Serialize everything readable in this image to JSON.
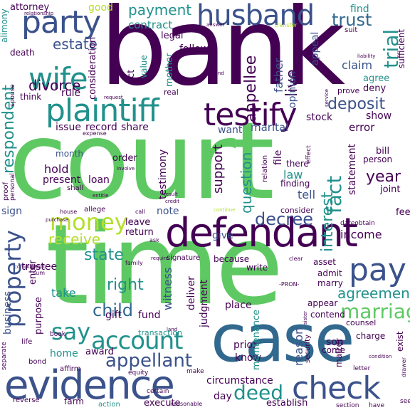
{
  "palette": {
    "dark_purple": "#440154",
    "indigo": "#3b528b",
    "teal": "#21918c",
    "green": "#5ec962",
    "yellow": "#fde725",
    "light_green": "#b5de2b"
  },
  "words": {
    "court": "court",
    "time": "time",
    "bank": "bank",
    "case": "case",
    "defendant": "defendant",
    "evidence": "evidence",
    "plaintiff": "plaintiff",
    "testify": "testify",
    "husband": "husband",
    "party": "party",
    "wife": "wife",
    "money": "money",
    "account": "account",
    "pay": "pay",
    "check": "check",
    "property": "property",
    "say": "say",
    "appellant": "appellant",
    "child": "child",
    "deed": "deed",
    "marriage": "marriage",
    "agreement": "agreement",
    "trust": "trust",
    "payment": "payment",
    "respondent": "respondent",
    "divorce": "divorce",
    "estate": "estate",
    "deposit": "deposit",
    "question": "question",
    "decree": "decree",
    "state": "state",
    "right": "right",
    "receive": "receive",
    "year": "year",
    "interest": "interest",
    "fact": "fact",
    "trial": "trial",
    "attorney": "attorney",
    "good": "good",
    "contract": "contract",
    "appellee": "appellee",
    "live": "live",
    "find": "find",
    "claim": "claim",
    "father": "father",
    "mother": "mother",
    "record": "record",
    "share": "share",
    "issue": "issue",
    "marital": "marital",
    "error": "error",
    "stock": "stock",
    "show": "show",
    "hold": "hold",
    "loan": "loan",
    "present": "present",
    "support": "support",
    "testimony": "testimony",
    "tell": "tell",
    "law": "law",
    "income": "income",
    "note": "note",
    "give": "give",
    "witness": "witness",
    "fund": "fund",
    "gift": "gift",
    "take": "take",
    "home": "home",
    "business": "business",
    "trustee": "trustee",
    "sign": "sign",
    "circumstance": "circumstance",
    "establish": "establish",
    "execute": "execute",
    "day": "day",
    "know": "know",
    "prior": "prior",
    "son": "son",
    "reason": "reason",
    "judgment": "judgment",
    "deliver": "deliver",
    "enter": "enter",
    "award": "award",
    "transaction": "transaction",
    "place": "place",
    "want": "want",
    "month": "month",
    "order": "order",
    "consideration": "consideration",
    "opinion": "opinion",
    "rule": "rule",
    "think": "think",
    "death": "death",
    "legal": "legal",
    "follow": "follow",
    "act": "act",
    "value": "value",
    "appeal": "appeal",
    "agree": "agree",
    "deny": "deny",
    "prove": "prove",
    "suit": "suit",
    "alimony": "alimony",
    "relationship": "relationship",
    "answer": "answer",
    "transfer": "transfer",
    "office": "office",
    "liability": "liability",
    "sufficient": "sufficient",
    "ground": "ground",
    "real": "real",
    "spouse": "spouse",
    "request": "request",
    "expense": "expense",
    "file": "file",
    "there": "there",
    "finding": "finding",
    "person": "person",
    "joint": "joint",
    "statement": "statement",
    "bill": "bill",
    "exist": "exist",
    "fee": "fee",
    "consider": "consider",
    "obtain": "obtain",
    "date": "date",
    "allege": "allege",
    "leave": "leave",
    "return": "return",
    "house": "house",
    "call": "call",
    "purchase": "purchase",
    "shall": "shall",
    "proof": "proof",
    "personal": "personal",
    "complainant": "complainant",
    "sum": "sum",
    "because": "because",
    "write": "write",
    "signature": "signature",
    "asset": "asset",
    "admit": "admit",
    "marry": "marry",
    "counsel": "counsel",
    "contend": "contend",
    "appear": "appear",
    "charge": "charge",
    "come": "come",
    "matter": "matter",
    "security": "security",
    "maintenance": "maintenance",
    "purpose": "purpose",
    "life": "life",
    "book": "book",
    "equity": "equity",
    "affirm": "affirm",
    "bond": "bond",
    "separate": "separate",
    "reverse": "reverse",
    "farm": "farm",
    "action": "action",
    "reasonable": "reasonable",
    "certain": "certain",
    "make": "make",
    "section": "section",
    "have": "have",
    "letter": "letter",
    "condition": "condition",
    "family": "family",
    "pron": "-PRON-",
    "land": "land",
    "clear": "clear",
    "require": "require",
    "result": "result",
    "entitle": "entitle",
    "involve": "involve",
    "credit": "credit",
    "relation": "relation",
    "effect": "effect",
    "continue": "continue",
    "ask": "ask",
    "service": "service",
    "sister": "sister",
    "drawer": "drawer",
    "see": "see"
  }
}
